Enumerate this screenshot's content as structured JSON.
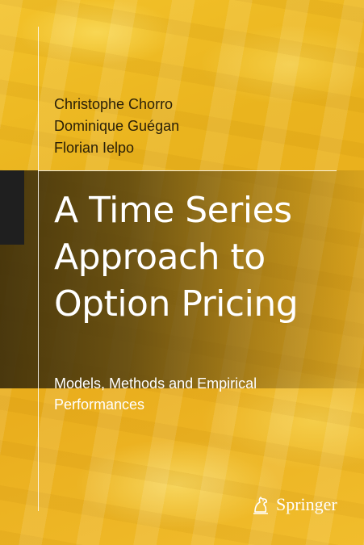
{
  "book": {
    "authors": [
      "Christophe Chorro",
      "Dominique Guégan",
      "Florian Ielpo"
    ],
    "title_lines": [
      "A Time Series",
      "Approach to",
      "Option Pricing"
    ],
    "subtitle_lines": [
      "Models, Methods and Empirical",
      "Performances"
    ],
    "publisher": "Springer",
    "publisher_logo_icon": "springer-horse-icon"
  },
  "colors": {
    "background": "#eab41e",
    "title_text": "#ffffff",
    "author_text": "#2a2008",
    "band": "#3c2d0a"
  }
}
